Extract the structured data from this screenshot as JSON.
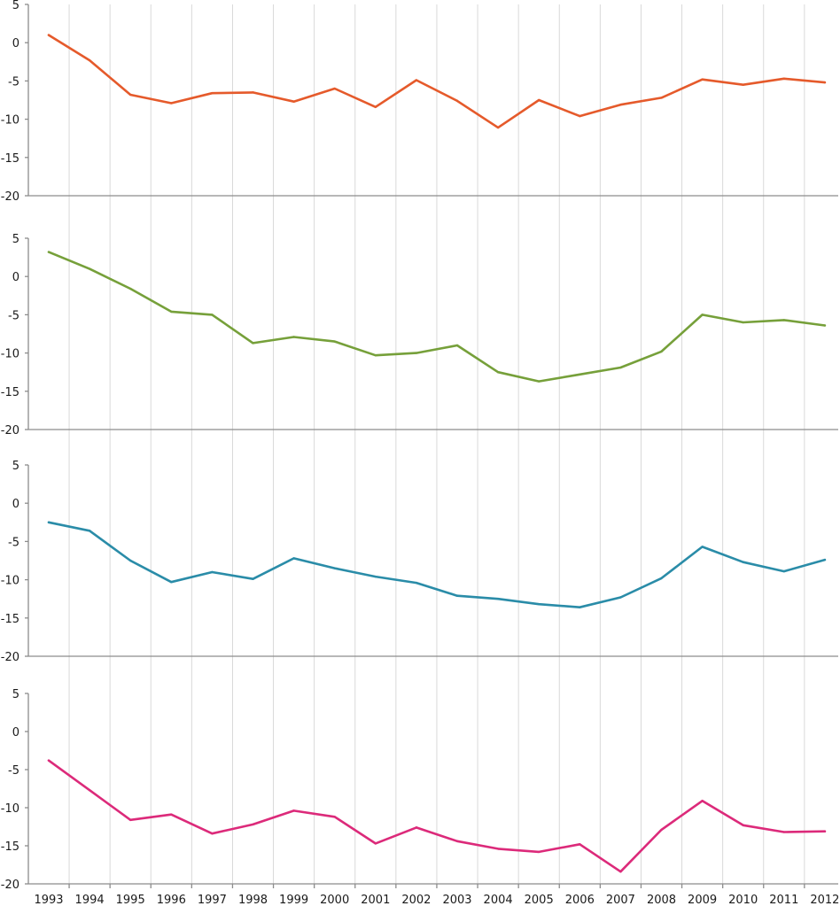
{
  "chart_data": [
    {
      "type": "line",
      "title": "",
      "xlabel": "",
      "ylabel": "",
      "ylim": [
        -20,
        5
      ],
      "yticks": [
        5,
        0,
        -5,
        -10,
        -15,
        -20
      ],
      "categories": [
        "1993",
        "1994",
        "1995",
        "1996",
        "1997",
        "1998",
        "1999",
        "2000",
        "2001",
        "2002",
        "2003",
        "2004",
        "2005",
        "2006",
        "2007",
        "2008",
        "2009",
        "2010",
        "2011",
        "2012"
      ],
      "series": [
        {
          "name": "",
          "color": "#e55a2b",
          "values": [
            1.0,
            -2.3,
            -6.8,
            -7.9,
            -6.6,
            -6.5,
            -7.7,
            -6.0,
            -8.4,
            -4.9,
            -7.6,
            -11.1,
            -7.5,
            -9.6,
            -8.1,
            -7.2,
            -4.8,
            -5.5,
            -4.7,
            -5.2
          ]
        }
      ]
    },
    {
      "type": "line",
      "title": "",
      "xlabel": "",
      "ylabel": "",
      "ylim": [
        -20,
        5
      ],
      "yticks": [
        5,
        0,
        -5,
        -10,
        -15,
        -20
      ],
      "categories": [
        "1993",
        "1994",
        "1995",
        "1996",
        "1997",
        "1998",
        "1999",
        "2000",
        "2001",
        "2002",
        "2003",
        "2004",
        "2005",
        "2006",
        "2007",
        "2008",
        "2009",
        "2010",
        "2011",
        "2012"
      ],
      "series": [
        {
          "name": "",
          "color": "#76a03a",
          "values": [
            3.2,
            1.0,
            -1.6,
            -4.6,
            -5.0,
            -8.7,
            -7.9,
            -8.5,
            -10.3,
            -10.0,
            -9.0,
            -12.5,
            -13.7,
            -12.8,
            -11.9,
            -9.8,
            -5.0,
            -6.0,
            -5.7,
            -6.4
          ]
        }
      ]
    },
    {
      "type": "line",
      "title": "",
      "xlabel": "",
      "ylabel": "",
      "ylim": [
        -20,
        5
      ],
      "yticks": [
        5,
        0,
        -5,
        -10,
        -15,
        -20
      ],
      "categories": [
        "1993",
        "1994",
        "1995",
        "1996",
        "1997",
        "1998",
        "1999",
        "2000",
        "2001",
        "2002",
        "2003",
        "2004",
        "2005",
        "2006",
        "2007",
        "2008",
        "2009",
        "2010",
        "2011",
        "2012"
      ],
      "series": [
        {
          "name": "",
          "color": "#2a8ca8",
          "values": [
            -2.5,
            -3.6,
            -7.5,
            -10.3,
            -9.0,
            -9.9,
            -7.2,
            -8.5,
            -9.6,
            -10.4,
            -12.1,
            -12.5,
            -13.2,
            -13.6,
            -12.3,
            -9.8,
            -5.7,
            -7.7,
            -8.9,
            -7.4
          ]
        }
      ]
    },
    {
      "type": "line",
      "title": "",
      "xlabel": "",
      "ylabel": "",
      "ylim": [
        -20,
        5
      ],
      "yticks": [
        5,
        0,
        -5,
        -10,
        -15,
        -20
      ],
      "categories": [
        "1993",
        "1994",
        "1995",
        "1996",
        "1997",
        "1998",
        "1999",
        "2000",
        "2001",
        "2002",
        "2003",
        "2004",
        "2005",
        "2006",
        "2007",
        "2008",
        "2009",
        "2010",
        "2011",
        "2012"
      ],
      "series": [
        {
          "name": "",
          "color": "#dc2a7a",
          "values": [
            -3.8,
            -7.7,
            -11.6,
            -10.9,
            -13.4,
            -12.2,
            -10.4,
            -11.2,
            -14.7,
            -12.6,
            -14.4,
            -15.4,
            -15.8,
            -14.8,
            -18.4,
            -12.9,
            -9.1,
            -12.3,
            -13.2,
            -13.1
          ]
        }
      ]
    }
  ]
}
